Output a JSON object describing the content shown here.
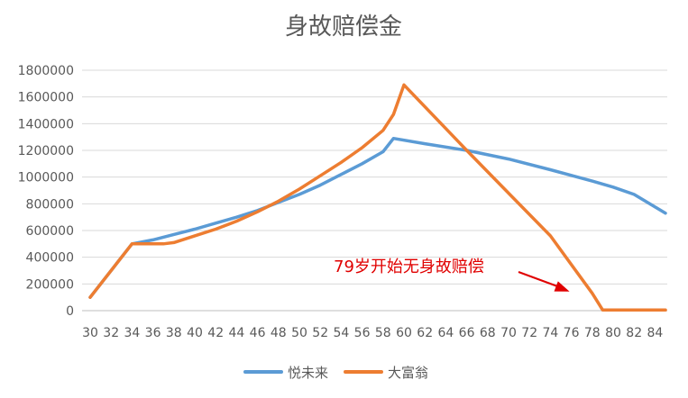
{
  "chart_data": {
    "type": "line",
    "title": "身故赔偿金",
    "ylim": [
      0,
      1800000
    ],
    "y_ticks": [
      "1800000",
      "1600000",
      "1400000",
      "1200000",
      "1000000",
      "800000",
      "600000",
      "400000",
      "200000",
      "0"
    ],
    "x_ticks": [
      "30",
      "32",
      "34",
      "36",
      "38",
      "40",
      "42",
      "44",
      "46",
      "48",
      "50",
      "52",
      "54",
      "56",
      "58",
      "60",
      "62",
      "64",
      "66",
      "68",
      "70",
      "72",
      "74",
      "76",
      "78",
      "80",
      "82",
      "84"
    ],
    "xlim": [
      30,
      85
    ],
    "grid": true,
    "legend_position": "bottom",
    "series": [
      {
        "name": "悦未来",
        "color": "#5B9BD5",
        "points": [
          [
            30,
            100000
          ],
          [
            34,
            500000
          ],
          [
            36,
            530000
          ],
          [
            38,
            570000
          ],
          [
            40,
            610000
          ],
          [
            42,
            655000
          ],
          [
            44,
            700000
          ],
          [
            46,
            750000
          ],
          [
            48,
            810000
          ],
          [
            50,
            870000
          ],
          [
            52,
            940000
          ],
          [
            54,
            1020000
          ],
          [
            56,
            1100000
          ],
          [
            58,
            1190000
          ],
          [
            59,
            1290000
          ],
          [
            62,
            1250000
          ],
          [
            66,
            1200000
          ],
          [
            70,
            1135000
          ],
          [
            74,
            1055000
          ],
          [
            78,
            970000
          ],
          [
            80,
            925000
          ],
          [
            82,
            870000
          ],
          [
            85,
            730000
          ]
        ]
      },
      {
        "name": "大富翁",
        "color": "#ED7D31",
        "points": [
          [
            30,
            100000
          ],
          [
            34,
            500000
          ],
          [
            37,
            500000
          ],
          [
            38,
            510000
          ],
          [
            40,
            560000
          ],
          [
            42,
            610000
          ],
          [
            44,
            670000
          ],
          [
            46,
            740000
          ],
          [
            48,
            820000
          ],
          [
            50,
            910000
          ],
          [
            52,
            1010000
          ],
          [
            54,
            1110000
          ],
          [
            56,
            1220000
          ],
          [
            58,
            1350000
          ],
          [
            59,
            1470000
          ],
          [
            60,
            1690000
          ],
          [
            66,
            1200000
          ],
          [
            70,
            880000
          ],
          [
            74,
            560000
          ],
          [
            78,
            130000
          ],
          [
            79,
            5000
          ],
          [
            85,
            5000
          ]
        ]
      }
    ],
    "annotation": {
      "text": "79岁开始无身故赔偿",
      "arrow_to": [
        76,
        150000
      ]
    }
  }
}
